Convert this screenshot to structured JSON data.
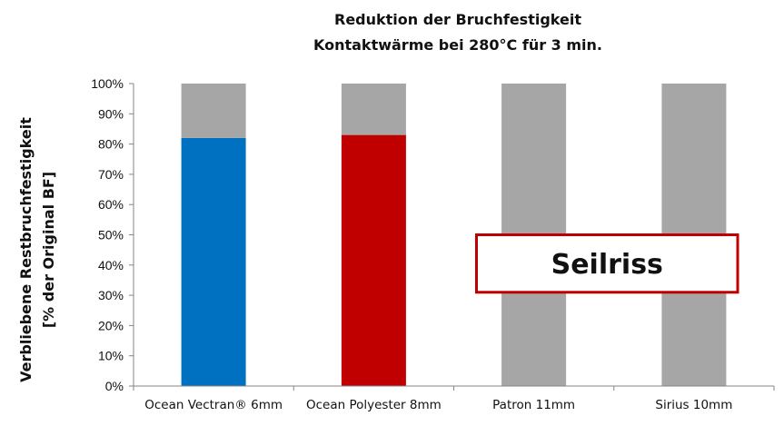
{
  "chart_data": {
    "type": "bar",
    "title": "Reduktion der Bruchfestigkeit",
    "subtitle": "Kontaktwärme bei 280°C für 3 min.",
    "ylabel_line1": "Verbliebene Restbruchfestigkeit",
    "ylabel_line2": "[% der Original BF]",
    "xlabel": "",
    "ylim": [
      0,
      100
    ],
    "yticks": [
      0,
      10,
      20,
      30,
      40,
      50,
      60,
      70,
      80,
      90,
      100
    ],
    "ytick_suffix": "%",
    "categories": [
      "Ocean Vectran® 6mm",
      "Ocean Polyester 8mm",
      "Patron 11mm",
      "Sirius 10mm"
    ],
    "series": [
      {
        "values": [
          82,
          83,
          0,
          0
        ],
        "colors": [
          "#0070c0",
          "#c00000",
          "#a6a6a6",
          "#a6a6a6"
        ]
      },
      {
        "values": [
          18,
          17,
          100,
          100
        ],
        "color": "#a6a6a6"
      }
    ],
    "stacked": true,
    "grid": false,
    "annotation": {
      "text": "Seilriss",
      "border_color": "#c00000"
    }
  }
}
